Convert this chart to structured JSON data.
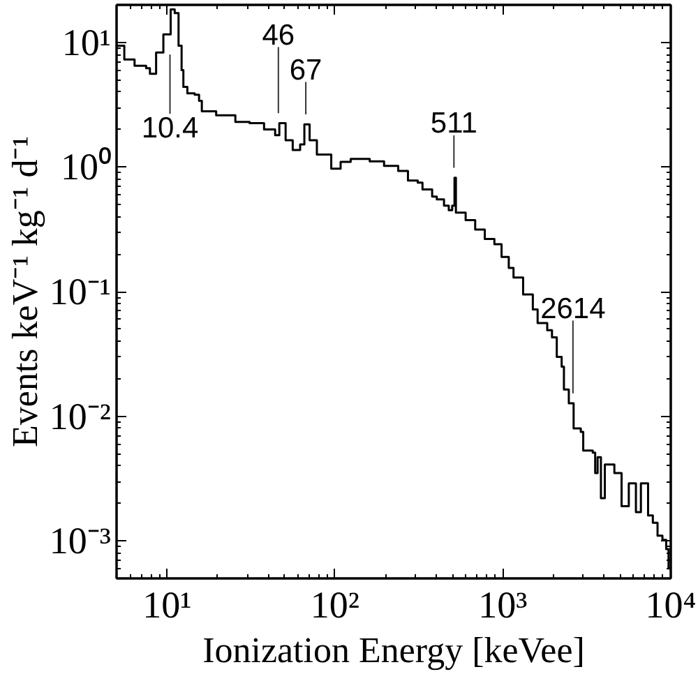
{
  "chart_data": {
    "type": "step",
    "xlabel": "Ionization Energy [keVee]",
    "ylabel": "Events keV⁻¹ kg⁻¹ d⁻¹",
    "log": "xy",
    "xlim": [
      5,
      10000
    ],
    "ylim": [
      0.0005,
      20
    ],
    "xticks": [
      {
        "value": 10,
        "label": "10¹"
      },
      {
        "value": 100,
        "label": "10²"
      },
      {
        "value": 1000,
        "label": "10³"
      },
      {
        "value": 10000,
        "label": "10⁴"
      }
    ],
    "yticks": [
      {
        "value": 0.001,
        "label": "10⁻³"
      },
      {
        "value": 0.01,
        "label": "10⁻²"
      },
      {
        "value": 0.1,
        "label": "10⁻¹"
      },
      {
        "value": 1,
        "label": "10⁰"
      },
      {
        "value": 10,
        "label": "10¹"
      }
    ],
    "x": [
      5.0,
      5.56,
      6.4,
      7.5,
      7.9,
      8.6,
      9.5,
      10.5,
      11.1,
      11.7,
      12.2,
      12.5,
      13.2,
      14.6,
      15.5,
      16.1,
      19.6,
      25.5,
      31,
      37.8,
      44,
      46.6,
      50.8,
      56,
      62,
      65.7,
      70.6,
      78,
      95,
      108,
      124,
      161,
      190,
      196,
      238,
      272,
      311,
      332,
      379,
      404,
      446,
      476,
      499,
      515,
      525,
      600,
      684,
      780,
      890,
      982,
      1084,
      1157,
      1320,
      1508,
      1610,
      1837,
      1961,
      2094,
      2239,
      2310,
      2470,
      2638,
      2911,
      3010,
      3430,
      3546,
      3666,
      3837,
      4048,
      4613,
      5093,
      5623,
      6200,
      6637,
      6940,
      7325,
      7820,
      8340,
      8920,
      9390,
      9700,
      10000
    ],
    "series": [
      {
        "color": "#000000",
        "values": [
          9.4,
          7.3,
          6.5,
          6.2,
          5.6,
          8.3,
          11.6,
          18.4,
          17.2,
          9.4,
          6.0,
          4.4,
          3.9,
          3.8,
          3.4,
          2.8,
          2.6,
          2.3,
          2.25,
          2.0,
          1.8,
          2.25,
          1.64,
          1.37,
          1.52,
          2.2,
          1.64,
          1.26,
          0.97,
          1.1,
          1.16,
          1.11,
          1.11,
          1.02,
          0.93,
          0.78,
          0.75,
          0.66,
          0.58,
          0.55,
          0.49,
          0.45,
          0.49,
          0.82,
          0.43,
          0.375,
          0.315,
          0.265,
          0.24,
          0.19,
          0.155,
          0.13,
          0.095,
          0.072,
          0.056,
          0.049,
          0.043,
          0.03,
          0.025,
          0.0164,
          0.0127,
          0.008,
          0.0075,
          0.0053,
          0.0051,
          0.0035,
          0.0047,
          0.0022,
          0.0041,
          0.0035,
          0.0019,
          0.0029,
          0.0017,
          0.0029,
          0.0029,
          0.0016,
          0.0014,
          0.0011,
          0.00102,
          0.00086,
          0.0006,
          0.0006
        ]
      }
    ],
    "annotations": [
      {
        "text": "10.4",
        "x": 10.4,
        "y": 8.0
      },
      {
        "text": "46",
        "x": 46,
        "y": 2.25
      },
      {
        "text": "67",
        "x": 67,
        "y": 2.2
      },
      {
        "text": "511",
        "x": 511,
        "y": 0.82
      },
      {
        "text": "2614",
        "x": 2614,
        "y": 0.0127
      }
    ]
  }
}
